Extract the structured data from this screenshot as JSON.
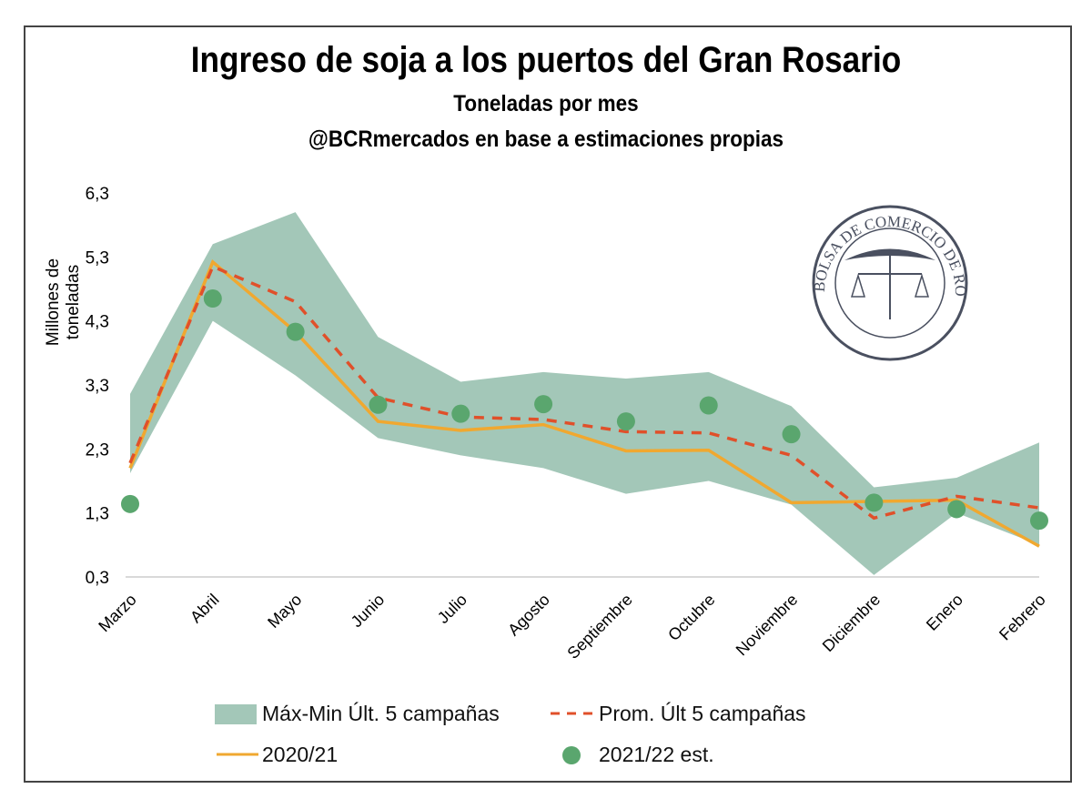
{
  "chart_data": {
    "type": "line",
    "title": "Ingreso de soja a los puertos del Gran Rosario",
    "subtitle": "Toneladas por mes",
    "source": "@BCRmercados en base a estimaciones propias",
    "xlabel": "",
    "ylabel": "Millones de toneladas",
    "ylim": [
      0.3,
      6.3
    ],
    "yticks": [
      "0,3",
      "1,3",
      "2,3",
      "3,3",
      "4,3",
      "5,3",
      "6,3"
    ],
    "ytick_values": [
      0.3,
      1.3,
      2.3,
      3.3,
      4.3,
      5.3,
      6.3
    ],
    "categories": [
      "Marzo",
      "Abril",
      "Mayo",
      "Junio",
      "Julio",
      "Agosto",
      "Septiembre",
      "Octubre",
      "Noviembre",
      "Diciembre",
      "Enero",
      "Febrero"
    ],
    "band": {
      "name": "Máx-Min Últ. 5 campañas",
      "color": "#a3c7b8",
      "max": [
        3.16,
        5.5,
        6.0,
        4.05,
        3.35,
        3.5,
        3.4,
        3.5,
        2.97,
        1.7,
        1.85,
        2.4
      ],
      "min": [
        1.92,
        4.3,
        3.45,
        2.47,
        2.2,
        2.0,
        1.6,
        1.8,
        1.43,
        0.33,
        1.3,
        0.8
      ]
    },
    "series": [
      {
        "name": "Prom. Últ 5 campañas",
        "style": "dashed",
        "color": "#e0502a",
        "values": [
          2.08,
          5.15,
          4.6,
          3.1,
          2.8,
          2.76,
          2.57,
          2.55,
          2.2,
          1.22,
          1.56,
          1.38
        ]
      },
      {
        "name": "2020/21",
        "style": "solid",
        "color": "#f0a830",
        "values": [
          2.0,
          5.22,
          4.13,
          2.73,
          2.59,
          2.68,
          2.27,
          2.28,
          1.46,
          1.48,
          1.5,
          0.78
        ]
      },
      {
        "name": "2021/22 est.",
        "style": "markers",
        "color": "#5aa66e",
        "values": [
          1.44,
          4.65,
          4.13,
          2.99,
          2.85,
          3.0,
          2.73,
          2.98,
          2.53,
          1.46,
          1.36,
          1.18
        ]
      }
    ],
    "grid": false,
    "legend_position": "bottom"
  },
  "logo": {
    "text": "BOLSA DE COMERCIO DE ROSARIO"
  }
}
